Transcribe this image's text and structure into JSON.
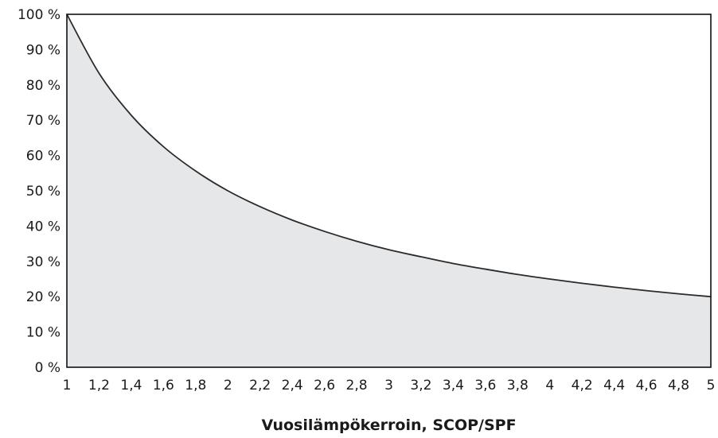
{
  "chart_data": {
    "type": "area",
    "title": "",
    "xlabel": "Vuosilämpökerroin, SCOP/SPF",
    "ylabel": "",
    "xlim": [
      1,
      5
    ],
    "ylim": [
      0,
      100
    ],
    "x_ticks": [
      "1",
      "1,2",
      "1,4",
      "1,6",
      "1,8",
      "2",
      "2,2",
      "2,4",
      "2,6",
      "2,8",
      "3",
      "3,2",
      "3,4",
      "3,6",
      "3,8",
      "4",
      "4,2",
      "4,4",
      "4,6",
      "4,8",
      "5"
    ],
    "x_tick_values": [
      1,
      1.2,
      1.4,
      1.6,
      1.8,
      2,
      2.2,
      2.4,
      2.6,
      2.8,
      3,
      3.2,
      3.4,
      3.6,
      3.8,
      4,
      4.2,
      4.4,
      4.6,
      4.8,
      5
    ],
    "y_ticks": [
      "0 %",
      "10 %",
      "20 %",
      "30 %",
      "40 %",
      "50 %",
      "60 %",
      "70 %",
      "80 %",
      "90 %",
      "100 %"
    ],
    "y_tick_values": [
      0,
      10,
      20,
      30,
      40,
      50,
      60,
      70,
      80,
      90,
      100
    ],
    "grid": false,
    "legend": "none",
    "series": [
      {
        "x": [
          1,
          1.2,
          1.4,
          1.6,
          1.8,
          2,
          2.2,
          2.4,
          2.6,
          2.8,
          3,
          3.2,
          3.4,
          3.6,
          3.8,
          4,
          4.2,
          4.4,
          4.6,
          4.8,
          5
        ],
        "values": [
          100,
          83.3,
          71.4,
          62.5,
          55.6,
          50,
          45.5,
          41.7,
          38.5,
          35.7,
          33.3,
          31.3,
          29.4,
          27.8,
          26.3,
          25,
          23.8,
          22.7,
          21.7,
          20.8,
          20
        ]
      }
    ],
    "colors": {
      "area": "#e6e7e9",
      "line": "#2b2b2b",
      "frame": "#111111",
      "text": "#1a1a1a"
    }
  }
}
